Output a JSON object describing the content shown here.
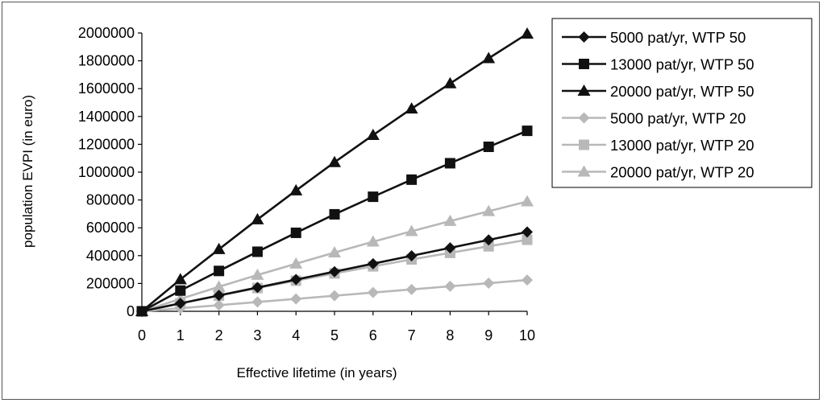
{
  "chart_data": {
    "type": "line",
    "title": "",
    "xlabel": "Effective lifetime (in years)",
    "ylabel": "population EVPI (in euro)",
    "x": [
      0,
      1,
      2,
      3,
      4,
      5,
      6,
      7,
      8,
      9,
      10
    ],
    "xlim": [
      0,
      10
    ],
    "ylim": [
      0,
      2000000
    ],
    "x_ticks": [
      "0",
      "1",
      "2",
      "3",
      "4",
      "5",
      "6",
      "7",
      "8",
      "9",
      "10"
    ],
    "y_ticks": [
      "0",
      "200000",
      "400000",
      "600000",
      "800000",
      "1000000",
      "1200000",
      "1400000",
      "1600000",
      "1800000",
      "2000000"
    ],
    "grid": false,
    "legend_position": "right",
    "series": [
      {
        "name": "5000 pat/yr, WTP 50",
        "marker": "diamond",
        "color": "#111111",
        "values": [
          0,
          57000,
          114000,
          171000,
          228000,
          285000,
          342000,
          399000,
          456000,
          513000,
          570000
        ]
      },
      {
        "name": "13000 pat/yr, WTP 50",
        "marker": "square",
        "color": "#111111",
        "values": [
          0,
          149000,
          290000,
          428000,
          564000,
          697000,
          823000,
          946000,
          1064000,
          1182000,
          1297000
        ]
      },
      {
        "name": "20000 pat/yr, WTP 50",
        "marker": "triangle",
        "color": "#111111",
        "values": [
          0,
          229000,
          446000,
          660000,
          868000,
          1071000,
          1266000,
          1456000,
          1637000,
          1818000,
          1994000
        ]
      },
      {
        "name": "5000 pat/yr, WTP 20",
        "marker": "diamond",
        "color": "#b8b8b8",
        "values": [
          0,
          22000,
          44000,
          67000,
          89000,
          112000,
          135000,
          157000,
          180000,
          202000,
          225000
        ]
      },
      {
        "name": "13000 pat/yr, WTP 20",
        "marker": "square",
        "color": "#b8b8b8",
        "values": [
          0,
          57000,
          112000,
          167000,
          220000,
          272000,
          323000,
          373000,
          420000,
          467000,
          514000
        ]
      },
      {
        "name": "20000 pat/yr, WTP 20",
        "marker": "triangle",
        "color": "#b8b8b8",
        "values": [
          0,
          89000,
          176000,
          261000,
          342000,
          422000,
          500000,
          575000,
          648000,
          719000,
          789000
        ]
      }
    ]
  }
}
